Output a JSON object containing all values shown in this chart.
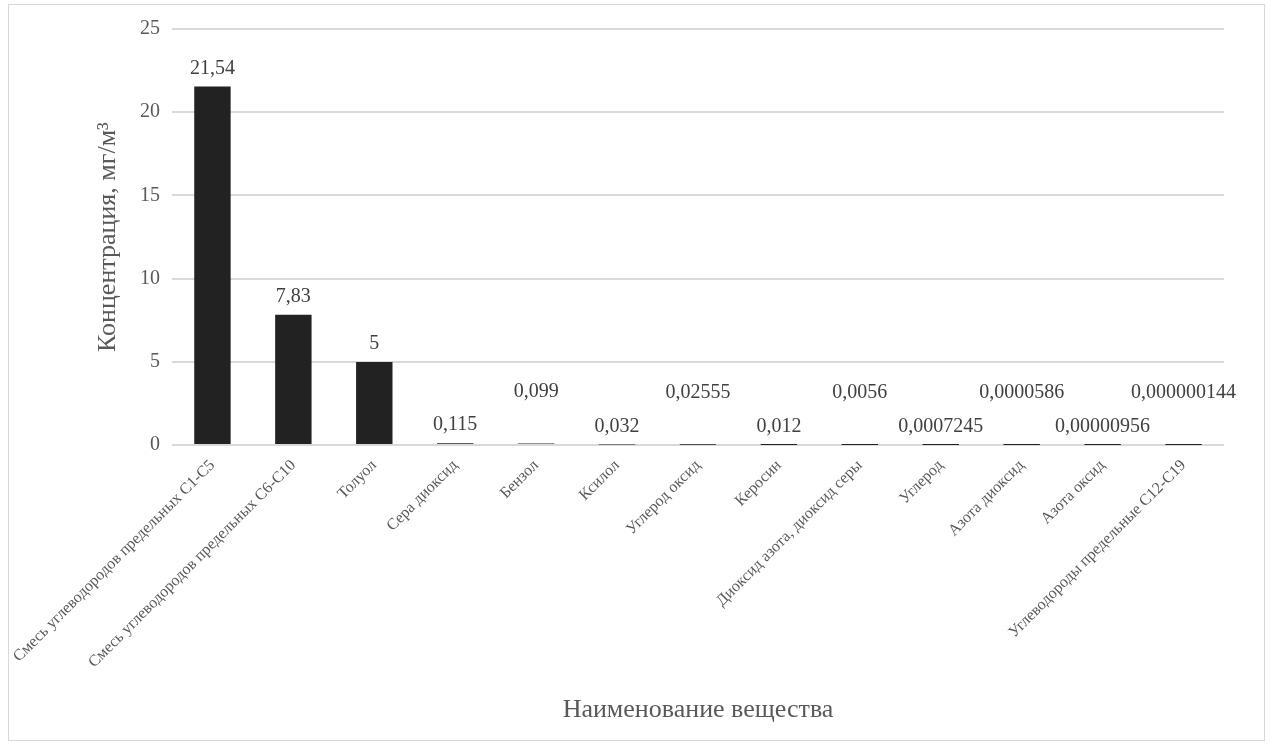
{
  "chart_data": {
    "type": "bar",
    "xlabel": "Наименование вещества",
    "ylabel": "Концентрация, мг/м³",
    "categories": [
      "Смесь углеводородов предельных С1-С5",
      "Смесь углеводородов предельных С6-С10",
      "Толуол",
      "Сера диоксид",
      "Бензол",
      "Ксилол",
      "Углерод оксид",
      "Керосин",
      "Диоксид азота, диоксид серы",
      "Углерод",
      "Азота диоксид",
      "Азота оксид",
      "Углеводороды предельные С12-С19"
    ],
    "values": [
      21.54,
      7.83,
      5,
      0.115,
      0.099,
      0.032,
      0.02555,
      0.012,
      0.0056,
      0.0007245,
      5.86e-05,
      9.56e-06,
      1.44e-07
    ],
    "value_labels": [
      "21,54",
      "7,83",
      "5",
      "0,115",
      "0,099",
      "0,032",
      "0,02555",
      "0,012",
      "0,0056",
      "0,0007245",
      "0,0000586",
      "0,00000956",
      "0,000000144"
    ],
    "color": "#222222",
    "ylim": [
      0,
      25
    ],
    "yticks": [
      0,
      5,
      10,
      15,
      20,
      25
    ],
    "grid": "y",
    "legend": false
  }
}
